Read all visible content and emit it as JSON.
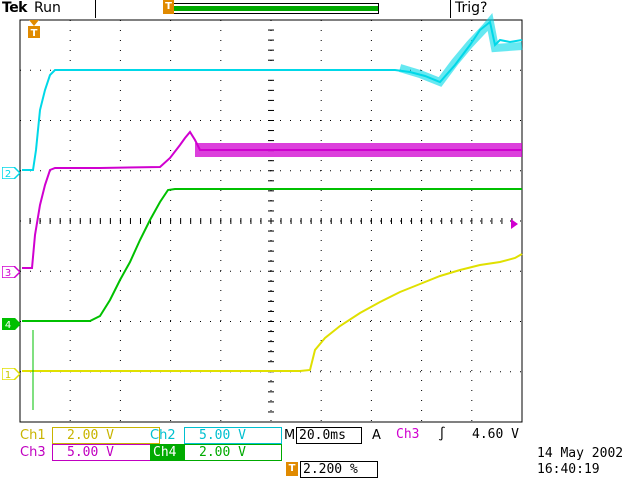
{
  "header": {
    "brand": "Tek",
    "run_state": "Run",
    "trigger_status": "Trig?"
  },
  "channels": [
    {
      "id": "1",
      "color": "#e0e000"
    },
    {
      "id": "2",
      "color": "#00d8e8"
    },
    {
      "id": "3",
      "color": "#d000d0"
    },
    {
      "id": "4",
      "color": "#00c000"
    }
  ],
  "readouts": {
    "ch1": {
      "label": "Ch1",
      "value": "2.00 V"
    },
    "ch2": {
      "label": "Ch2",
      "value": "5.00 V"
    },
    "ch3": {
      "label": "Ch3",
      "value": "5.00 V"
    },
    "ch4": {
      "label": "Ch4",
      "value": "2.00 V"
    },
    "timebase": {
      "prefix": "M",
      "value": "20.0ms"
    },
    "trigger": {
      "mode": "A",
      "source": "Ch3",
      "slope": "rising-edge-icon",
      "level": "4.60 V"
    },
    "trigger_position": "2.200 %"
  },
  "datetime": {
    "date": "14 May 2002",
    "time": "16:40:19"
  },
  "colors": {
    "ch1": "#e0e000",
    "ch2": "#00d8e8",
    "ch3": "#d000d0",
    "ch4": "#00c000",
    "trigger_marker": "#e08a00",
    "record_bar": "#00aa00"
  }
}
